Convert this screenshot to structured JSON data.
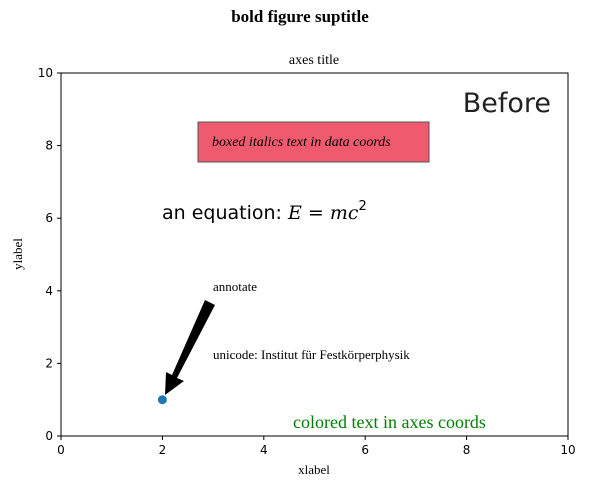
{
  "chart_data": {
    "type": "scatter",
    "suptitle": "bold figure suptitle",
    "title": "axes title",
    "xlabel": "xlabel",
    "ylabel": "ylabel",
    "xlim": [
      0,
      10
    ],
    "ylim": [
      0,
      10
    ],
    "xticks": [
      "0",
      "2",
      "4",
      "6",
      "8",
      "10"
    ],
    "yticks": [
      "0",
      "2",
      "4",
      "6",
      "8",
      "10"
    ],
    "grid": false,
    "points": [
      {
        "x": 2,
        "y": 1,
        "color": "#1f77b4"
      }
    ],
    "annotations": {
      "before": "Before",
      "boxed": "boxed italics text in data coords",
      "box_color": "#f05a6e",
      "equation_prefix": "an equation: ",
      "equation_math": "E = mc",
      "equation_exp": "2",
      "annotate": "annotate",
      "unicode": "unicode: Institut für Festkörperphysik",
      "colored": "colored text in axes coords",
      "colored_color": "#008000"
    }
  }
}
